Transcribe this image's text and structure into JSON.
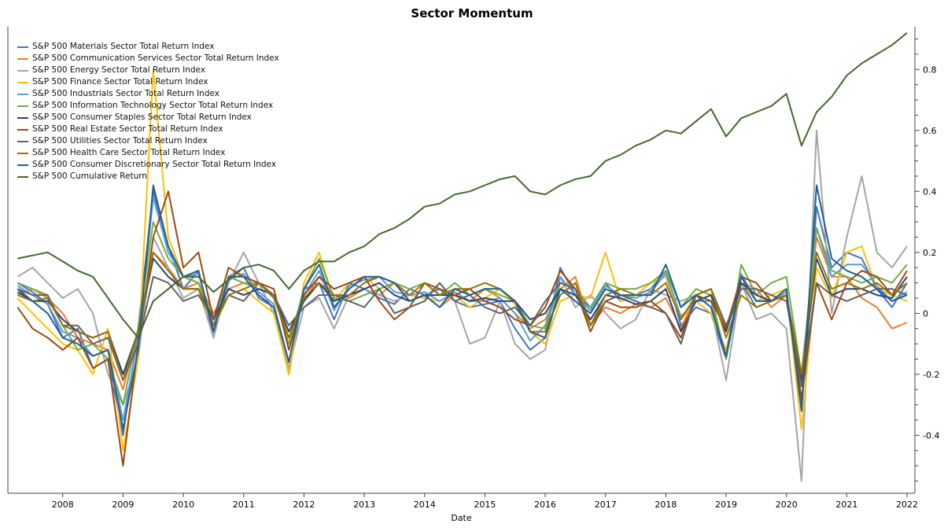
{
  "chart_data": {
    "type": "line",
    "title": "Sector Momentum",
    "xlabel": "Date",
    "ylabel": "",
    "xlim": [
      2007.09,
      2022.13
    ],
    "ylim": [
      -0.59,
      0.94
    ],
    "x_ticks": [
      "2008",
      "2009",
      "2010",
      "2011",
      "2012",
      "2013",
      "2014",
      "2015",
      "2016",
      "2017",
      "2018",
      "2019",
      "2020",
      "2021",
      "2022"
    ],
    "y_ticks": [
      "-0.4",
      "-0.2",
      "0",
      "0.2",
      "0.4",
      "0.6",
      "0.8"
    ],
    "y_axis_side": "right",
    "grid": false,
    "legend_position": "top-left",
    "x": [
      2007.25,
      2007.5,
      2007.75,
      2008.0,
      2008.25,
      2008.5,
      2008.75,
      2009.0,
      2009.25,
      2009.5,
      2009.75,
      2010.0,
      2010.25,
      2010.5,
      2010.75,
      2011.0,
      2011.25,
      2011.5,
      2011.75,
      2012.0,
      2012.25,
      2012.5,
      2012.75,
      2013.0,
      2013.25,
      2013.5,
      2013.75,
      2014.0,
      2014.25,
      2014.5,
      2014.75,
      2015.0,
      2015.25,
      2015.5,
      2015.75,
      2016.0,
      2016.25,
      2016.5,
      2016.75,
      2017.0,
      2017.25,
      2017.5,
      2017.75,
      2018.0,
      2018.25,
      2018.5,
      2018.75,
      2019.0,
      2019.25,
      2019.5,
      2019.75,
      2020.0,
      2020.25,
      2020.5,
      2020.75,
      2021.0,
      2021.25,
      2021.5,
      2021.75,
      2022.0
    ],
    "series": [
      {
        "name": "S&P 500 Materials Sector Total Return Index",
        "color": "#4472C4",
        "values": [
          0.1,
          0.07,
          0.03,
          -0.08,
          -0.05,
          -0.18,
          -0.15,
          -0.4,
          -0.05,
          0.4,
          0.22,
          0.08,
          0.14,
          -0.08,
          0.12,
          0.15,
          0.05,
          0.02,
          -0.2,
          0.08,
          0.1,
          -0.02,
          0.1,
          0.08,
          0.05,
          0.03,
          0.08,
          0.06,
          0.08,
          0.04,
          0.02,
          0.03,
          0.04,
          -0.05,
          -0.12,
          -0.08,
          0.15,
          0.06,
          0.02,
          0.1,
          0.04,
          0.06,
          0.08,
          0.14,
          -0.04,
          0.02,
          0.0,
          -0.15,
          0.1,
          0.02,
          0.04,
          0.06,
          -0.32,
          0.35,
          0.15,
          0.2,
          0.18,
          0.08,
          0.02,
          0.1
        ]
      },
      {
        "name": "S&P 500 Communication Services Sector Total Return Index",
        "color": "#ED7D31",
        "values": [
          0.06,
          0.08,
          0.05,
          0.0,
          -0.08,
          -0.1,
          -0.12,
          -0.25,
          -0.05,
          0.2,
          0.15,
          0.08,
          0.1,
          0.0,
          0.08,
          0.1,
          0.1,
          0.06,
          -0.08,
          0.04,
          0.12,
          0.06,
          0.05,
          0.08,
          0.06,
          0.1,
          0.04,
          0.06,
          0.02,
          0.06,
          0.04,
          0.08,
          0.05,
          0.0,
          -0.05,
          -0.02,
          0.08,
          0.12,
          -0.04,
          0.02,
          0.0,
          0.03,
          0.02,
          0.05,
          -0.05,
          0.06,
          0.08,
          -0.05,
          0.1,
          0.08,
          0.02,
          0.06,
          -0.2,
          0.25,
          0.12,
          0.12,
          0.05,
          0.02,
          -0.05,
          -0.03
        ]
      },
      {
        "name": "S&P 500 Energy Sector Total Return Index",
        "color": "#A5A5A5",
        "values": [
          0.12,
          0.15,
          0.1,
          0.05,
          0.08,
          0.0,
          -0.2,
          -0.3,
          -0.15,
          0.25,
          0.15,
          0.05,
          0.08,
          -0.08,
          0.1,
          0.2,
          0.1,
          0.0,
          -0.18,
          0.02,
          0.05,
          -0.05,
          0.06,
          0.08,
          0.06,
          0.04,
          0.06,
          0.05,
          0.1,
          0.04,
          -0.1,
          -0.08,
          0.04,
          -0.1,
          -0.15,
          -0.12,
          0.12,
          0.02,
          0.06,
          0.0,
          -0.05,
          -0.02,
          0.08,
          0.06,
          0.04,
          0.06,
          0.02,
          -0.22,
          0.1,
          -0.02,
          0.0,
          -0.05,
          -0.55,
          0.6,
          0.0,
          0.25,
          0.45,
          0.2,
          0.15,
          0.22
        ]
      },
      {
        "name": "S&P 500 Finance Sector Total Return Index",
        "color": "#FFC000",
        "values": [
          0.05,
          0.0,
          -0.05,
          -0.1,
          -0.12,
          -0.2,
          -0.05,
          -0.45,
          -0.15,
          0.8,
          0.25,
          0.12,
          0.1,
          -0.05,
          0.06,
          0.08,
          0.04,
          0.0,
          -0.2,
          0.1,
          0.2,
          0.04,
          0.1,
          0.12,
          0.08,
          0.1,
          0.06,
          0.05,
          0.04,
          0.06,
          0.02,
          0.05,
          0.08,
          0.03,
          -0.06,
          -0.1,
          0.04,
          0.06,
          0.05,
          0.2,
          0.04,
          0.06,
          0.1,
          0.12,
          -0.02,
          0.04,
          0.0,
          -0.12,
          0.1,
          0.04,
          0.06,
          0.08,
          -0.38,
          0.15,
          0.05,
          0.2,
          0.22,
          0.08,
          0.06,
          0.04
        ]
      },
      {
        "name": "S&P 500 Industrials Sector Total Return Index",
        "color": "#5B9BD5",
        "values": [
          0.09,
          0.06,
          0.03,
          -0.06,
          -0.08,
          -0.14,
          -0.12,
          -0.35,
          -0.08,
          0.38,
          0.2,
          0.12,
          0.13,
          -0.04,
          0.11,
          0.13,
          0.07,
          0.03,
          -0.16,
          0.06,
          0.14,
          0.01,
          0.09,
          0.11,
          0.12,
          0.07,
          0.06,
          0.07,
          0.04,
          0.07,
          0.04,
          0.04,
          0.05,
          0.0,
          -0.09,
          -0.04,
          0.12,
          0.06,
          0.01,
          0.09,
          0.06,
          0.05,
          0.07,
          0.13,
          -0.01,
          0.04,
          0.04,
          -0.14,
          0.13,
          0.04,
          0.04,
          0.07,
          -0.3,
          0.28,
          0.12,
          0.16,
          0.16,
          0.09,
          0.04,
          0.07
        ]
      },
      {
        "name": "S&P 500 Information Technology Sector Total Return Index",
        "color": "#70AD47",
        "values": [
          0.1,
          0.08,
          0.06,
          -0.04,
          -0.12,
          -0.1,
          -0.15,
          -0.3,
          -0.05,
          0.3,
          0.18,
          0.12,
          0.1,
          -0.02,
          0.12,
          0.1,
          0.08,
          0.06,
          -0.1,
          0.08,
          0.18,
          0.05,
          0.04,
          0.06,
          0.08,
          0.1,
          0.08,
          0.1,
          0.06,
          0.1,
          0.06,
          0.08,
          0.06,
          0.04,
          -0.04,
          -0.05,
          0.1,
          0.08,
          0.02,
          0.1,
          0.08,
          0.08,
          0.1,
          0.14,
          0.02,
          0.08,
          0.06,
          -0.15,
          0.16,
          0.06,
          0.1,
          0.12,
          -0.2,
          0.28,
          0.14,
          0.12,
          0.1,
          0.12,
          0.1,
          0.16
        ]
      },
      {
        "name": "S&P 500 Consumer Staples Sector Total Return Index",
        "color": "#264478",
        "values": [
          0.07,
          0.04,
          0.04,
          -0.02,
          -0.06,
          -0.08,
          -0.06,
          -0.2,
          -0.06,
          0.18,
          0.12,
          0.08,
          0.08,
          -0.02,
          0.08,
          0.06,
          0.08,
          0.06,
          -0.06,
          0.04,
          0.1,
          0.04,
          0.06,
          0.08,
          0.1,
          0.06,
          0.04,
          0.06,
          0.06,
          0.06,
          0.04,
          0.05,
          0.04,
          0.04,
          -0.02,
          0.0,
          0.08,
          0.06,
          -0.02,
          0.06,
          0.05,
          0.03,
          0.04,
          0.08,
          -0.06,
          0.04,
          0.06,
          -0.06,
          0.1,
          0.06,
          0.04,
          0.06,
          -0.22,
          0.18,
          0.06,
          0.08,
          0.08,
          0.06,
          0.05,
          0.12
        ]
      },
      {
        "name": "S&P 500 Real Estate Sector Total Return Index",
        "color": "#9E480E",
        "values": [
          0.02,
          -0.05,
          -0.08,
          -0.12,
          -0.08,
          -0.18,
          -0.15,
          -0.5,
          -0.1,
          0.25,
          0.4,
          0.15,
          0.2,
          -0.02,
          0.15,
          0.12,
          0.1,
          0.08,
          -0.12,
          0.06,
          0.12,
          0.08,
          0.1,
          0.12,
          0.04,
          -0.02,
          0.02,
          0.1,
          0.08,
          0.06,
          0.08,
          0.04,
          0.02,
          -0.02,
          -0.04,
          0.02,
          0.14,
          0.08,
          -0.06,
          0.04,
          0.02,
          0.02,
          0.04,
          0.0,
          -0.08,
          0.06,
          0.04,
          -0.05,
          0.12,
          0.1,
          0.04,
          0.06,
          -0.28,
          0.1,
          -0.02,
          0.1,
          0.14,
          0.12,
          0.06,
          0.14
        ]
      },
      {
        "name": "S&P 500 Utilities Sector Total Return Index",
        "color": "#636363",
        "values": [
          0.08,
          0.06,
          0.06,
          -0.04,
          -0.04,
          -0.1,
          -0.08,
          -0.22,
          -0.1,
          0.12,
          0.1,
          0.04,
          0.06,
          -0.02,
          0.06,
          0.04,
          0.1,
          0.06,
          -0.04,
          0.02,
          0.06,
          0.06,
          0.04,
          0.02,
          0.08,
          0.0,
          0.02,
          0.04,
          0.1,
          0.04,
          0.06,
          0.02,
          0.0,
          0.02,
          -0.04,
          0.04,
          0.1,
          0.08,
          -0.04,
          0.04,
          0.06,
          0.04,
          0.02,
          0.0,
          -0.1,
          0.06,
          0.08,
          -0.04,
          0.08,
          0.08,
          0.06,
          0.04,
          -0.24,
          0.1,
          0.06,
          0.04,
          0.06,
          0.08,
          0.08,
          0.06
        ]
      },
      {
        "name": "S&P 500 Health Care Sector Total Return Index",
        "color": "#997300",
        "values": [
          0.06,
          0.04,
          0.05,
          -0.04,
          -0.06,
          -0.08,
          -0.06,
          -0.22,
          -0.06,
          0.2,
          0.14,
          0.08,
          0.08,
          -0.04,
          0.06,
          0.08,
          0.1,
          0.05,
          -0.08,
          0.05,
          0.1,
          0.06,
          0.06,
          0.1,
          0.12,
          0.1,
          0.06,
          0.1,
          0.06,
          0.08,
          0.08,
          0.1,
          0.08,
          0.04,
          -0.06,
          -0.06,
          0.06,
          0.1,
          -0.04,
          0.06,
          0.08,
          0.06,
          0.06,
          0.1,
          -0.02,
          0.06,
          0.08,
          -0.08,
          0.06,
          0.02,
          0.04,
          0.06,
          -0.2,
          0.2,
          0.08,
          0.1,
          0.08,
          0.1,
          0.06,
          0.1
        ]
      },
      {
        "name": "S&P 500 Consumer Discretionary Sector Total Return Index",
        "color": "#255E91",
        "values": [
          0.08,
          0.04,
          0.0,
          -0.08,
          -0.1,
          -0.14,
          -0.12,
          -0.38,
          -0.12,
          0.42,
          0.22,
          0.12,
          0.14,
          -0.06,
          0.12,
          0.12,
          0.06,
          0.02,
          -0.16,
          0.08,
          0.16,
          0.02,
          0.08,
          0.12,
          0.12,
          0.1,
          0.04,
          0.06,
          0.02,
          0.08,
          0.06,
          0.08,
          0.08,
          0.04,
          -0.06,
          -0.08,
          0.08,
          0.04,
          0.0,
          0.08,
          0.06,
          0.06,
          0.06,
          0.16,
          0.02,
          0.06,
          0.02,
          -0.14,
          0.12,
          0.04,
          0.04,
          0.08,
          -0.32,
          0.42,
          0.18,
          0.14,
          0.12,
          0.08,
          0.04,
          0.06
        ]
      },
      {
        "name": "S&P 500 Cumulative Return",
        "color": "#43682B",
        "values": [
          0.18,
          0.19,
          0.2,
          0.17,
          0.14,
          0.12,
          0.05,
          -0.02,
          -0.08,
          0.04,
          0.08,
          0.12,
          0.12,
          0.07,
          0.11,
          0.15,
          0.16,
          0.14,
          0.08,
          0.14,
          0.17,
          0.17,
          0.2,
          0.22,
          0.26,
          0.28,
          0.31,
          0.35,
          0.36,
          0.39,
          0.4,
          0.42,
          0.44,
          0.45,
          0.4,
          0.39,
          0.42,
          0.44,
          0.45,
          0.5,
          0.52,
          0.55,
          0.57,
          0.6,
          0.59,
          0.63,
          0.67,
          0.58,
          0.64,
          0.66,
          0.68,
          0.72,
          0.55,
          0.66,
          0.71,
          0.78,
          0.82,
          0.85,
          0.88,
          0.92
        ]
      }
    ]
  }
}
